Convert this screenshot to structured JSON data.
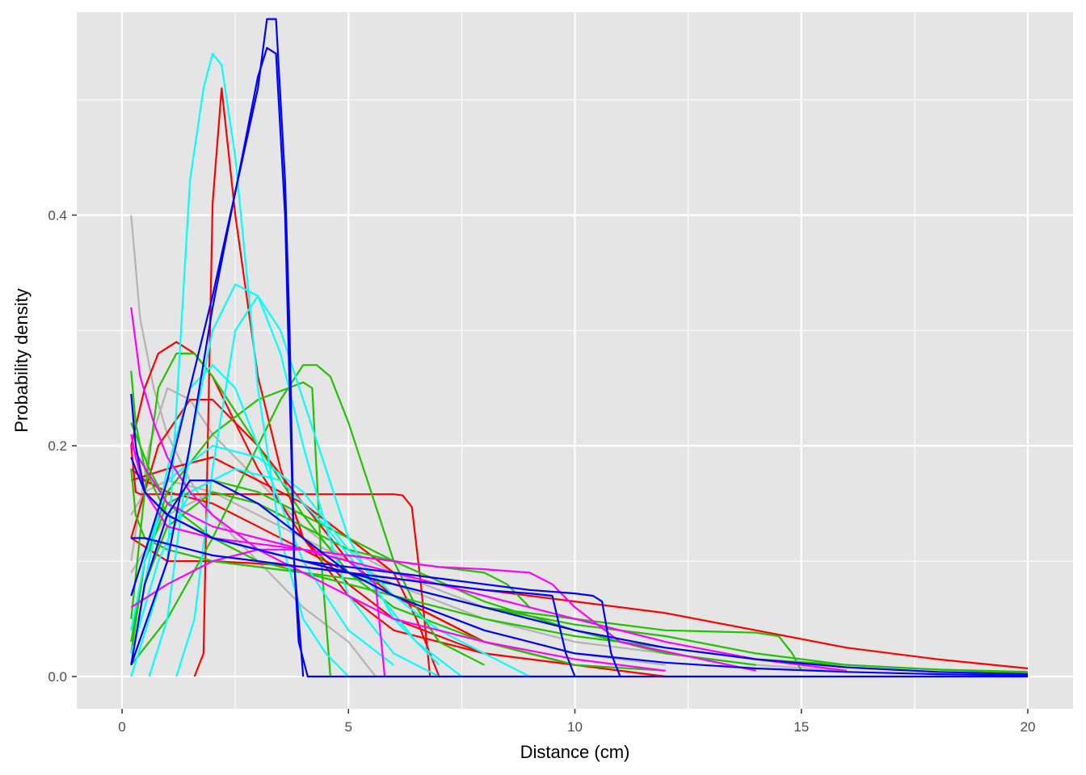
{
  "chart_data": {
    "type": "line",
    "title": "",
    "xlabel": "Distance (cm)",
    "ylabel": "Probability density",
    "xlim": [
      -1,
      21
    ],
    "ylim": [
      -0.028,
      0.576
    ],
    "x_ticks": [
      0,
      5,
      10,
      15,
      20
    ],
    "x_tick_labels": [
      "0",
      "5",
      "10",
      "15",
      "20"
    ],
    "y_ticks": [
      0.0,
      0.2,
      0.4
    ],
    "y_tick_labels": [
      "0.0",
      "0.2",
      "0.4"
    ],
    "grid": true,
    "legend": "none",
    "colors": {
      "panel_bg": "#e5e5e5",
      "grid": "#ffffff",
      "red": "#ff0000",
      "green": "#1fc300",
      "cyan": "#00ffff",
      "magenta": "#ff00ff",
      "blue": "#0000ff",
      "grey": "#b3b3b3"
    },
    "series": [
      {
        "color": "#b3b3b3",
        "x": [
          0.2,
          0.4,
          0.7,
          1,
          1.5,
          2,
          3,
          4,
          5,
          5.6
        ],
        "y": [
          0.4,
          0.31,
          0.25,
          0.21,
          0.17,
          0.14,
          0.1,
          0.06,
          0.03,
          0
        ]
      },
      {
        "color": "#b3b3b3",
        "x": [
          0.2,
          0.6,
          1,
          1.5,
          2,
          3,
          4,
          5,
          6,
          8,
          10,
          12
        ],
        "y": [
          0.1,
          0.2,
          0.25,
          0.24,
          0.21,
          0.17,
          0.13,
          0.1,
          0.07,
          0.04,
          0.02,
          0.01
        ]
      },
      {
        "color": "#b3b3b3",
        "x": [
          0.2,
          0.5,
          1,
          2,
          3,
          4,
          5,
          6,
          8,
          10,
          12,
          14
        ],
        "y": [
          0.14,
          0.16,
          0.17,
          0.16,
          0.14,
          0.12,
          0.1,
          0.08,
          0.05,
          0.03,
          0.02,
          0.01
        ]
      },
      {
        "color": "#b3b3b3",
        "x": [
          0.2,
          1,
          2,
          3,
          4,
          5,
          6,
          8,
          10,
          12,
          14,
          16
        ],
        "y": [
          0.09,
          0.14,
          0.16,
          0.15,
          0.13,
          0.11,
          0.09,
          0.06,
          0.04,
          0.02,
          0.01,
          0.005
        ]
      },
      {
        "color": "#ff0000",
        "x": [
          1.6,
          1.8,
          2,
          2.2,
          2.5,
          3,
          3.5,
          4,
          5,
          6,
          8,
          10,
          12
        ],
        "y": [
          0,
          0.02,
          0.41,
          0.51,
          0.4,
          0.26,
          0.18,
          0.12,
          0.07,
          0.04,
          0.02,
          0.01,
          0
        ]
      },
      {
        "color": "#ff0000",
        "x": [
          0.2,
          0.5,
          0.8,
          1.2,
          1.6,
          2,
          2.5,
          3,
          4,
          5,
          6,
          8,
          10
        ],
        "y": [
          0.2,
          0.25,
          0.28,
          0.29,
          0.28,
          0.26,
          0.22,
          0.18,
          0.12,
          0.08,
          0.05,
          0.02,
          0.01
        ]
      },
      {
        "color": "#ff0000",
        "x": [
          0.2,
          0.3,
          0.4,
          6,
          6.2,
          6.4,
          6.6,
          6.8
        ],
        "y": [
          0.2,
          0.16,
          0.158,
          0.158,
          0.157,
          0.147,
          0.08,
          0
        ]
      },
      {
        "color": "#ff0000",
        "x": [
          0.2,
          1,
          2,
          3,
          4,
          5,
          6,
          8,
          10,
          12,
          14,
          16,
          18,
          20
        ],
        "y": [
          0.12,
          0.1,
          0.1,
          0.098,
          0.095,
          0.09,
          0.085,
          0.075,
          0.065,
          0.055,
          0.04,
          0.025,
          0.015,
          0.007
        ]
      },
      {
        "color": "#ff0000",
        "x": [
          0.2,
          0.8,
          1.5,
          2,
          3,
          4,
          5,
          6,
          8,
          10
        ],
        "y": [
          0.12,
          0.2,
          0.24,
          0.24,
          0.2,
          0.15,
          0.1,
          0.07,
          0.03,
          0.01
        ]
      },
      {
        "color": "#ff0000",
        "x": [
          0.2,
          1,
          2,
          3,
          4,
          5,
          6,
          6.5,
          7
        ],
        "y": [
          0.17,
          0.18,
          0.19,
          0.17,
          0.15,
          0.12,
          0.09,
          0.05,
          0
        ]
      },
      {
        "color": "#ff0000",
        "x": [
          0.2,
          0.5,
          1,
          2,
          3,
          4,
          5,
          6,
          7,
          8,
          10
        ],
        "y": [
          0.18,
          0.17,
          0.16,
          0.15,
          0.13,
          0.11,
          0.09,
          0.07,
          0.05,
          0.03,
          0.01
        ]
      },
      {
        "color": "#1fc300",
        "x": [
          0.2,
          0.5,
          0.8,
          1.2,
          1.6,
          2,
          3,
          4,
          5,
          6,
          8,
          10,
          12
        ],
        "y": [
          0.05,
          0.16,
          0.25,
          0.28,
          0.28,
          0.26,
          0.2,
          0.14,
          0.09,
          0.06,
          0.03,
          0.01,
          0.005
        ]
      },
      {
        "color": "#1fc300",
        "x": [
          0.2,
          0.5,
          1,
          2,
          3,
          4,
          4.2,
          4.4,
          4.6
        ],
        "y": [
          0.03,
          0.1,
          0.16,
          0.21,
          0.24,
          0.255,
          0.25,
          0.1,
          0
        ]
      },
      {
        "color": "#1fc300",
        "x": [
          0.2,
          1,
          2,
          3,
          3.5,
          4,
          4.3,
          4.6,
          5,
          5.5,
          6,
          6.5,
          7,
          8
        ],
        "y": [
          0.01,
          0.05,
          0.12,
          0.2,
          0.24,
          0.27,
          0.27,
          0.26,
          0.22,
          0.16,
          0.1,
          0.06,
          0.03,
          0.01
        ]
      },
      {
        "color": "#1fc300",
        "x": [
          0.2,
          0.3,
          0.5,
          1,
          2,
          4,
          6,
          8,
          10,
          12,
          14,
          14.5,
          14.8,
          15
        ],
        "y": [
          0.18,
          0.14,
          0.12,
          0.11,
          0.1,
          0.09,
          0.08,
          0.06,
          0.05,
          0.04,
          0.038,
          0.035,
          0.02,
          0.005
        ]
      },
      {
        "color": "#1fc300",
        "x": [
          0.2,
          0.3,
          0.5,
          1,
          2,
          3,
          4,
          5,
          6,
          8,
          10,
          12,
          14,
          16,
          18,
          20
        ],
        "y": [
          0.265,
          0.22,
          0.18,
          0.14,
          0.12,
          0.11,
          0.1,
          0.09,
          0.08,
          0.06,
          0.045,
          0.035,
          0.02,
          0.01,
          0.006,
          0.003
        ]
      },
      {
        "color": "#1fc300",
        "x": [
          0.2,
          0.5,
          1,
          2,
          3,
          4,
          5,
          6,
          8,
          10,
          12,
          14
        ],
        "y": [
          0.02,
          0.1,
          0.15,
          0.17,
          0.16,
          0.14,
          0.12,
          0.1,
          0.065,
          0.04,
          0.02,
          0.01
        ]
      },
      {
        "color": "#1fc300",
        "x": [
          0.2,
          0.5,
          1,
          2,
          3,
          4,
          5,
          6,
          7,
          8,
          8.5,
          9
        ],
        "y": [
          0.01,
          0.08,
          0.13,
          0.16,
          0.15,
          0.13,
          0.11,
          0.1,
          0.095,
          0.09,
          0.08,
          0.06
        ]
      },
      {
        "color": "#1fc300",
        "x": [
          0.2,
          0.6,
          1,
          2,
          3,
          4,
          5,
          6,
          8,
          10,
          12,
          14,
          16,
          18,
          20
        ],
        "y": [
          0.22,
          0.18,
          0.15,
          0.12,
          0.1,
          0.09,
          0.08,
          0.07,
          0.05,
          0.035,
          0.025,
          0.015,
          0.01,
          0.006,
          0.004
        ]
      },
      {
        "color": "#00ffff",
        "x": [
          0.2,
          1,
          1.5,
          1.8,
          2,
          2.2,
          2.5,
          3,
          3.5,
          4,
          4.5,
          5
        ],
        "y": [
          0,
          0.1,
          0.43,
          0.51,
          0.54,
          0.53,
          0.45,
          0.25,
          0.12,
          0.05,
          0.02,
          0
        ]
      },
      {
        "color": "#00ffff",
        "x": [
          0.6,
          1,
          1.5,
          2,
          2.5,
          3,
          3.5,
          4,
          4.5,
          5,
          6,
          7
        ],
        "y": [
          0,
          0.05,
          0.2,
          0.3,
          0.34,
          0.33,
          0.28,
          0.2,
          0.13,
          0.07,
          0.02,
          0
        ]
      },
      {
        "color": "#00ffff",
        "x": [
          1.2,
          1.6,
          2,
          2.5,
          3,
          3.5,
          4,
          5,
          6,
          7
        ],
        "y": [
          0,
          0.05,
          0.18,
          0.3,
          0.33,
          0.3,
          0.24,
          0.12,
          0.05,
          0.01
        ]
      },
      {
        "color": "#00ffff",
        "x": [
          0.2,
          0.5,
          1,
          1.5,
          2,
          2.5,
          3,
          3.5,
          4,
          5,
          6
        ],
        "y": [
          0.01,
          0.08,
          0.18,
          0.25,
          0.27,
          0.25,
          0.2,
          0.15,
          0.1,
          0.04,
          0.01
        ]
      },
      {
        "color": "#00ffff",
        "x": [
          0.2,
          0.5,
          1,
          2,
          3,
          4,
          5,
          6,
          7,
          8,
          9
        ],
        "y": [
          0.04,
          0.1,
          0.17,
          0.2,
          0.19,
          0.16,
          0.11,
          0.07,
          0.04,
          0.02,
          0
        ]
      },
      {
        "color": "#00ffff",
        "x": [
          0.2,
          0.8,
          1.5,
          2.5,
          3.5,
          4.5,
          5.5,
          6.5,
          7.5
        ],
        "y": [
          0.02,
          0.1,
          0.16,
          0.18,
          0.17,
          0.13,
          0.08,
          0.03,
          0
        ]
      },
      {
        "color": "#ff00ff",
        "x": [
          0.2,
          0.4,
          0.7,
          1,
          1.5,
          2,
          3,
          4,
          5,
          6,
          8,
          10,
          12
        ],
        "y": [
          0.32,
          0.26,
          0.22,
          0.19,
          0.16,
          0.14,
          0.11,
          0.09,
          0.07,
          0.05,
          0.03,
          0.015,
          0.005
        ]
      },
      {
        "color": "#ff00ff",
        "x": [
          0.2,
          0.3,
          0.5,
          1,
          2,
          3,
          4,
          5,
          6,
          7,
          8,
          9,
          9.5,
          10,
          11,
          14
        ],
        "y": [
          0.21,
          0.19,
          0.16,
          0.13,
          0.12,
          0.115,
          0.11,
          0.105,
          0.1,
          0.095,
          0.093,
          0.09,
          0.08,
          0.06,
          0.03,
          0.005
        ]
      },
      {
        "color": "#ff00ff",
        "x": [
          0.2,
          1,
          2,
          3,
          4,
          5,
          6,
          8,
          10,
          12,
          14,
          16
        ],
        "y": [
          0.06,
          0.08,
          0.1,
          0.11,
          0.11,
          0.1,
          0.09,
          0.07,
          0.05,
          0.03,
          0.015,
          0.005
        ]
      },
      {
        "color": "#ff00ff",
        "x": [
          0.2,
          1,
          2,
          3,
          4,
          5,
          5.6,
          5.8
        ],
        "y": [
          0.2,
          0.15,
          0.13,
          0.12,
          0.11,
          0.1,
          0.08,
          0
        ]
      },
      {
        "color": "#0000ff",
        "x": [
          0.2,
          1,
          1.5,
          2,
          2.5,
          3,
          3.2,
          3.4,
          3.6,
          3.7,
          3.8,
          3.9,
          4.1,
          4.3,
          20
        ],
        "y": [
          0.07,
          0.17,
          0.25,
          0.33,
          0.42,
          0.51,
          0.57,
          0.57,
          0.43,
          0.3,
          0.1,
          0.03,
          0,
          0,
          0
        ]
      },
      {
        "color": "#0000ff",
        "x": [
          0.2,
          1,
          1.5,
          2,
          2.5,
          3,
          3.2,
          3.4,
          3.6,
          3.8,
          4
        ],
        "y": [
          0.01,
          0.1,
          0.2,
          0.32,
          0.42,
          0.52,
          0.545,
          0.54,
          0.4,
          0.1,
          0
        ]
      },
      {
        "color": "#0000ff",
        "x": [
          0.2,
          0.5,
          1,
          1.5,
          2,
          3,
          4,
          5,
          6,
          7,
          8,
          9,
          9.5,
          9.8,
          10
        ],
        "y": [
          0.12,
          0.12,
          0.115,
          0.11,
          0.105,
          0.1,
          0.095,
          0.09,
          0.085,
          0.08,
          0.075,
          0.072,
          0.07,
          0.02,
          0
        ]
      },
      {
        "color": "#0000ff",
        "x": [
          0.2,
          0.3,
          0.5,
          1,
          2,
          3,
          4,
          5,
          6,
          7,
          8,
          9,
          10,
          10.4,
          10.6,
          10.8,
          11
        ],
        "y": [
          0.245,
          0.2,
          0.16,
          0.14,
          0.12,
          0.11,
          0.1,
          0.095,
          0.09,
          0.085,
          0.08,
          0.075,
          0.072,
          0.07,
          0.065,
          0.02,
          0
        ]
      },
      {
        "color": "#0000ff",
        "x": [
          0.2,
          0.5,
          1,
          1.5,
          2,
          3,
          4,
          5,
          6,
          8,
          10,
          12,
          14,
          16,
          18,
          20
        ],
        "y": [
          0.19,
          0.16,
          0.14,
          0.13,
          0.12,
          0.11,
          0.1,
          0.09,
          0.08,
          0.06,
          0.04,
          0.025,
          0.015,
          0.008,
          0.004,
          0.002
        ]
      },
      {
        "color": "#0000ff",
        "x": [
          0.2,
          0.5,
          1,
          1.5,
          2,
          3,
          4,
          5,
          6,
          8,
          10,
          12,
          14,
          16,
          18,
          20
        ],
        "y": [
          0.01,
          0.08,
          0.14,
          0.17,
          0.17,
          0.15,
          0.12,
          0.09,
          0.07,
          0.04,
          0.02,
          0.012,
          0.007,
          0.004,
          0.002,
          0.001
        ]
      }
    ]
  }
}
